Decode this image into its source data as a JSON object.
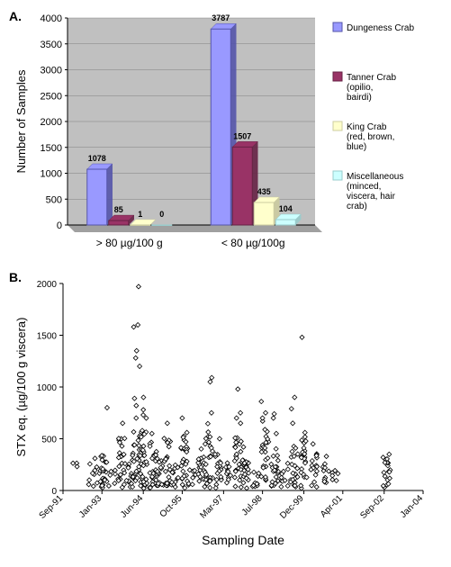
{
  "panelA": {
    "label": "A.",
    "type": "bar",
    "ylabel": "Number of Samples",
    "ylabel_fontsize": 13,
    "ylim": [
      0,
      4000
    ],
    "ytick_step": 500,
    "yticks": [
      0,
      500,
      1000,
      1500,
      2000,
      2500,
      3000,
      3500,
      4000
    ],
    "groups": [
      "> 80 µg/100 g",
      "< 80 µg/100g"
    ],
    "series": [
      {
        "name": "Dungeness Crab",
        "color": "#9999ff",
        "border": "#5555aa"
      },
      {
        "name": "Tanner Crab (opilio, bairdi)",
        "color": "#993366",
        "border": "#662244"
      },
      {
        "name": "King Crab (red, brown, blue)",
        "color": "#ffffcc",
        "border": "#cccca0"
      },
      {
        "name": "Miscellaneous (minced, viscera, hair crab)",
        "color": "#ccffff",
        "border": "#99cccc"
      }
    ],
    "values": [
      [
        1078,
        85,
        1,
        0
      ],
      [
        3787,
        1507,
        435,
        104
      ]
    ],
    "plot_bg": "#c0c0c0",
    "grid_color": "#808080",
    "axis_fontsize": 11,
    "label_fontsize": 9,
    "bar_border_width": 1
  },
  "panelB": {
    "label": "B.",
    "type": "scatter",
    "xlabel": "Sampling Date",
    "ylabel": "STX eq. (µg/100 g viscera)",
    "xlabel_fontsize": 14,
    "ylabel_fontsize": 13,
    "ylim": [
      0,
      2000
    ],
    "yticks": [
      0,
      500,
      1000,
      1500,
      2000
    ],
    "xrange": [
      "Sep-91",
      "Jan-04"
    ],
    "xticks": [
      "Sep-91",
      "Jan-93",
      "Jun-94",
      "Oct-95",
      "Mar-97",
      "Jul-98",
      "Dec-99",
      "Apr-01",
      "Sep-02",
      "Jan-04"
    ],
    "xtick_months": [
      0,
      16,
      33,
      49,
      66,
      82,
      99,
      115,
      132,
      148
    ],
    "axis_fontsize": 10,
    "marker": {
      "shape": "diamond",
      "fill": "#ffffff",
      "stroke": "#000000",
      "size": 5
    },
    "background_color": "#ffffff",
    "axis_color": "#000000",
    "clusters": [
      {
        "m": 5,
        "n": 3,
        "max": 250
      },
      {
        "m": 12,
        "n": 8,
        "max": 300
      },
      {
        "m": 15,
        "n": 10,
        "max": 250
      },
      {
        "m": 17,
        "n": 18,
        "max": 350,
        "extra": [
          800
        ]
      },
      {
        "m": 20,
        "n": 6,
        "max": 200
      },
      {
        "m": 24,
        "n": 22,
        "max": 500,
        "extra": [
          650
        ]
      },
      {
        "m": 27,
        "n": 12,
        "max": 300
      },
      {
        "m": 30,
        "n": 25,
        "max": 550,
        "extra": [
          700,
          820,
          890,
          1200,
          1280,
          1350,
          1580,
          1600,
          1970
        ]
      },
      {
        "m": 33,
        "n": 30,
        "max": 600,
        "extra": [
          700,
          730,
          780,
          900
        ]
      },
      {
        "m": 37,
        "n": 20,
        "max": 450,
        "extra": [
          550
        ]
      },
      {
        "m": 40,
        "n": 18,
        "max": 300
      },
      {
        "m": 43,
        "n": 22,
        "max": 500,
        "extra": [
          650
        ]
      },
      {
        "m": 46,
        "n": 12,
        "max": 250
      },
      {
        "m": 50,
        "n": 25,
        "max": 550,
        "extra": [
          700,
          560
        ]
      },
      {
        "m": 53,
        "n": 8,
        "max": 200
      },
      {
        "m": 57,
        "n": 20,
        "max": 400,
        "extra": [
          450
        ]
      },
      {
        "m": 60,
        "n": 22,
        "max": 650,
        "extra": [
          750,
          1050,
          1090
        ]
      },
      {
        "m": 64,
        "n": 18,
        "max": 400,
        "extra": [
          500
        ]
      },
      {
        "m": 68,
        "n": 10,
        "max": 300
      },
      {
        "m": 72,
        "n": 24,
        "max": 500,
        "extra": [
          650,
          700,
          750,
          980
        ]
      },
      {
        "m": 75,
        "n": 18,
        "max": 350,
        "extra": [
          420
        ]
      },
      {
        "m": 79,
        "n": 10,
        "max": 250
      },
      {
        "m": 83,
        "n": 22,
        "max": 600,
        "extra": [
          670,
          700,
          750,
          860
        ]
      },
      {
        "m": 87,
        "n": 20,
        "max": 400,
        "extra": [
          550,
          700,
          740
        ]
      },
      {
        "m": 91,
        "n": 10,
        "max": 250
      },
      {
        "m": 95,
        "n": 20,
        "max": 500,
        "extra": [
          650,
          900,
          790
        ]
      },
      {
        "m": 99,
        "n": 22,
        "max": 500,
        "extra": [
          560,
          1480
        ]
      },
      {
        "m": 103,
        "n": 15,
        "max": 350,
        "extra": [
          450
        ]
      },
      {
        "m": 108,
        "n": 10,
        "max": 250,
        "extra": [
          330
        ]
      },
      {
        "m": 112,
        "n": 6,
        "max": 200
      },
      {
        "m": 133,
        "n": 18,
        "max": 300,
        "extra": [
          350
        ]
      }
    ]
  }
}
